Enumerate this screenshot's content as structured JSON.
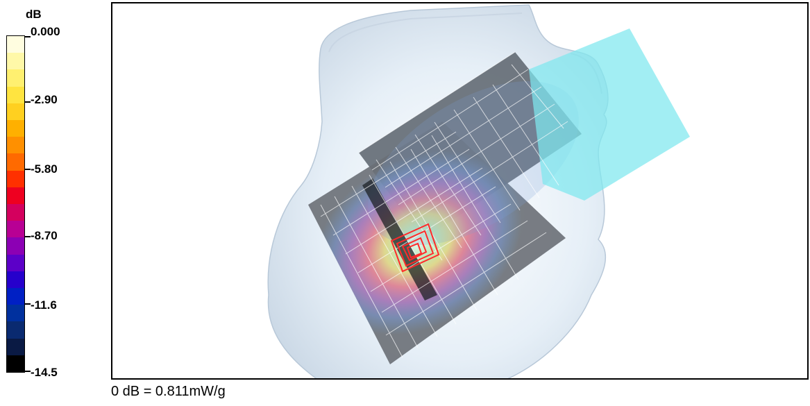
{
  "colorbar": {
    "unit": "dB",
    "tick_labels": [
      "0.000",
      "-2.90",
      "-5.80",
      "-8.70",
      "-11.6",
      "-14.5"
    ],
    "band_colors": [
      "#fffde0",
      "#fff8a8",
      "#fff070",
      "#ffe440",
      "#ffd020",
      "#ffb000",
      "#ff9000",
      "#ff6a00",
      "#ff3000",
      "#ee0020",
      "#d4005e",
      "#b80094",
      "#8c00b4",
      "#5c00c8",
      "#2600cc",
      "#0020c4",
      "#00309e",
      "#0a2a70",
      "#0a1a44",
      "#000000"
    ]
  },
  "viewport": {
    "description_icon": "sar-phantom-3d-view",
    "phantom_color": "#e4eef6",
    "scan_area_color": "#6a6a6a",
    "hotspot_color": "#ff2a2a",
    "device_color": "#7ee8ee"
  },
  "reference_text": "0 dB = 0.811mW/g"
}
